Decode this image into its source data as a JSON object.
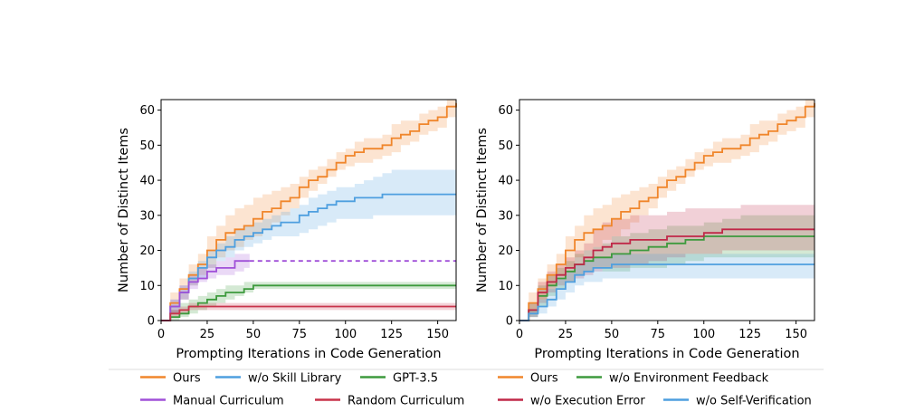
{
  "chart_data": [
    {
      "type": "line",
      "panel": "left",
      "xlabel": "Prompting Iterations in Code Generation",
      "ylabel": "Number of Distinct Items",
      "xlim": [
        0,
        160
      ],
      "ylim": [
        0,
        63
      ],
      "xticks": [
        "0",
        "25",
        "50",
        "75",
        "100",
        "125",
        "150"
      ],
      "yticks": [
        "0",
        "10",
        "20",
        "30",
        "40",
        "50",
        "60"
      ],
      "grid": false,
      "legend_position": "below",
      "series": [
        {
          "name": "Ours",
          "color": "#f0862c",
          "style": "solid",
          "x": [
            0,
            5,
            10,
            15,
            20,
            25,
            30,
            35,
            40,
            45,
            50,
            55,
            60,
            65,
            70,
            75,
            80,
            85,
            90,
            95,
            100,
            105,
            110,
            115,
            120,
            125,
            130,
            135,
            140,
            145,
            150,
            155,
            160
          ],
          "y": [
            0,
            5,
            9,
            13,
            16,
            20,
            23,
            25,
            26,
            27,
            29,
            31,
            32,
            34,
            35,
            38,
            40,
            41,
            43,
            45,
            47,
            48,
            49,
            49,
            50,
            52,
            53,
            54,
            56,
            57,
            58,
            61,
            62
          ],
          "lower": [
            0,
            2,
            6,
            10,
            13,
            15,
            18,
            20,
            21,
            23,
            24,
            26,
            28,
            30,
            32,
            35,
            37,
            39,
            41,
            43,
            44,
            45,
            45,
            46,
            47,
            48,
            50,
            51,
            53,
            54,
            55,
            58,
            60
          ],
          "upper": [
            0,
            8,
            12,
            16,
            19,
            24,
            27,
            30,
            32,
            33,
            35,
            36,
            37,
            38,
            39,
            41,
            43,
            44,
            46,
            48,
            49,
            51,
            52,
            52,
            53,
            56,
            57,
            57,
            59,
            60,
            61,
            63,
            63
          ]
        },
        {
          "name": "w/o Skill Library",
          "color": "#4e9fdf",
          "style": "solid",
          "x": [
            0,
            5,
            10,
            15,
            20,
            25,
            30,
            35,
            40,
            45,
            50,
            55,
            60,
            65,
            70,
            75,
            80,
            85,
            90,
            95,
            100,
            105,
            110,
            115,
            120,
            125,
            130,
            135,
            140,
            145,
            150,
            155,
            160
          ],
          "y": [
            0,
            4,
            8,
            12,
            15,
            18,
            20,
            21,
            23,
            24,
            25,
            26,
            27,
            28,
            28,
            30,
            31,
            32,
            33,
            34,
            34,
            35,
            35,
            35,
            36,
            36,
            36,
            36,
            36,
            36,
            36,
            36,
            36
          ],
          "lower": [
            0,
            2,
            6,
            10,
            12,
            15,
            17,
            18,
            20,
            21,
            22,
            23,
            24,
            24,
            24,
            25,
            26,
            27,
            28,
            29,
            29,
            29,
            29,
            30,
            30,
            30,
            30,
            30,
            30,
            30,
            30,
            30,
            30
          ],
          "upper": [
            0,
            6,
            10,
            14,
            17,
            20,
            22,
            24,
            26,
            27,
            28,
            29,
            30,
            31,
            32,
            33,
            35,
            36,
            37,
            38,
            38,
            39,
            40,
            41,
            42,
            43,
            43,
            43,
            43,
            43,
            43,
            43,
            43
          ]
        },
        {
          "name": "GPT-3.5",
          "color": "#3d9a3d",
          "style": "solid",
          "x": [
            0,
            5,
            10,
            15,
            20,
            25,
            30,
            35,
            40,
            45,
            50,
            55,
            60,
            70,
            80,
            100,
            120,
            140,
            160
          ],
          "y": [
            0,
            1,
            2,
            4,
            5,
            6,
            7,
            8,
            8,
            9,
            10,
            10,
            10,
            10,
            10,
            10,
            10,
            10,
            10
          ],
          "lower": [
            0,
            0,
            1,
            2,
            3,
            4,
            5,
            6,
            7,
            8,
            9,
            9,
            9,
            9,
            9,
            9,
            9,
            9,
            9
          ],
          "upper": [
            0,
            3,
            5,
            6,
            7,
            8,
            9,
            10,
            10,
            11,
            11,
            11,
            11,
            11,
            11,
            11,
            11,
            11,
            11
          ]
        },
        {
          "name": "Manual Curriculum",
          "color": "#a050d8",
          "style": "solid",
          "x": [
            0,
            5,
            10,
            15,
            20,
            25,
            30,
            35,
            40,
            45,
            48
          ],
          "y": [
            0,
            4,
            8,
            11,
            12,
            14,
            15,
            15,
            17,
            17,
            17
          ],
          "lower": [
            0,
            2,
            6,
            9,
            11,
            12,
            13,
            13,
            14,
            15,
            15
          ],
          "upper": [
            0,
            6,
            10,
            13,
            15,
            16,
            17,
            18,
            19,
            19,
            19
          ]
        },
        {
          "name": "Manual Curriculum (extension)",
          "color": "#a050d8",
          "style": "dashed",
          "x": [
            48,
            160
          ],
          "y": [
            17,
            17
          ]
        },
        {
          "name": "Random Curriculum",
          "color": "#c8334a",
          "style": "solid",
          "x": [
            0,
            5,
            10,
            15,
            20,
            25,
            30,
            40,
            60,
            80,
            100,
            120,
            140,
            160
          ],
          "y": [
            0,
            2,
            3,
            4,
            4,
            4,
            4,
            4,
            4,
            4,
            4,
            4,
            4,
            4
          ],
          "lower": [
            0,
            1,
            2,
            3,
            3,
            3,
            3,
            3,
            3,
            3,
            3,
            3,
            3,
            3
          ],
          "upper": [
            0,
            3,
            4,
            5,
            5,
            5,
            5,
            5,
            5,
            5,
            5,
            5,
            5,
            5
          ]
        }
      ]
    },
    {
      "type": "line",
      "panel": "right",
      "xlabel": "Prompting Iterations in Code Generation",
      "ylabel": "Number of Distinct Items",
      "xlim": [
        0,
        160
      ],
      "ylim": [
        0,
        63
      ],
      "xticks": [
        "0",
        "25",
        "50",
        "75",
        "100",
        "125",
        "150"
      ],
      "yticks": [
        "0",
        "10",
        "20",
        "30",
        "40",
        "50",
        "60"
      ],
      "grid": false,
      "legend_position": "below",
      "series": [
        {
          "name": "Ours",
          "color": "#f0862c",
          "style": "solid",
          "x": [
            0,
            5,
            10,
            15,
            20,
            25,
            30,
            35,
            40,
            45,
            50,
            55,
            60,
            65,
            70,
            75,
            80,
            85,
            90,
            95,
            100,
            105,
            110,
            115,
            120,
            125,
            130,
            135,
            140,
            145,
            150,
            155,
            160
          ],
          "y": [
            0,
            5,
            9,
            13,
            16,
            20,
            23,
            25,
            26,
            27,
            29,
            31,
            32,
            34,
            35,
            38,
            40,
            41,
            43,
            45,
            47,
            48,
            49,
            49,
            50,
            52,
            53,
            54,
            56,
            57,
            58,
            61,
            62
          ],
          "lower": [
            0,
            2,
            6,
            10,
            13,
            15,
            18,
            20,
            21,
            23,
            24,
            26,
            28,
            30,
            32,
            35,
            37,
            39,
            41,
            43,
            44,
            45,
            45,
            46,
            47,
            48,
            50,
            51,
            53,
            54,
            55,
            58,
            60
          ],
          "upper": [
            0,
            8,
            12,
            16,
            19,
            24,
            27,
            30,
            32,
            33,
            35,
            36,
            37,
            38,
            39,
            41,
            43,
            44,
            46,
            48,
            49,
            51,
            52,
            52,
            53,
            56,
            57,
            57,
            59,
            60,
            61,
            63,
            63
          ]
        },
        {
          "name": "w/o Environment Feedback",
          "color": "#3d9a3d",
          "style": "solid",
          "x": [
            0,
            5,
            10,
            15,
            20,
            25,
            30,
            35,
            40,
            45,
            50,
            60,
            70,
            80,
            90,
            100,
            110,
            120,
            130,
            140,
            150,
            160
          ],
          "y": [
            0,
            3,
            7,
            10,
            12,
            14,
            16,
            17,
            18,
            18,
            19,
            20,
            21,
            22,
            23,
            24,
            24,
            24,
            24,
            24,
            24,
            24
          ],
          "lower": [
            0,
            1,
            4,
            7,
            9,
            11,
            13,
            14,
            15,
            14,
            14,
            15,
            15,
            16,
            17,
            18,
            18,
            18,
            18,
            18,
            18,
            18
          ],
          "upper": [
            0,
            5,
            10,
            13,
            15,
            17,
            19,
            20,
            21,
            22,
            24,
            25,
            26,
            27,
            27,
            28,
            29,
            30,
            30,
            30,
            30,
            30
          ]
        },
        {
          "name": "w/o Execution Error",
          "color": "#c02848",
          "style": "solid",
          "x": [
            0,
            5,
            10,
            15,
            20,
            25,
            30,
            35,
            40,
            45,
            50,
            60,
            70,
            80,
            90,
            100,
            110,
            120,
            130,
            140,
            150,
            160
          ],
          "y": [
            0,
            3,
            8,
            11,
            13,
            15,
            16,
            18,
            20,
            21,
            22,
            23,
            23,
            24,
            24,
            25,
            26,
            26,
            26,
            26,
            26,
            26
          ],
          "lower": [
            0,
            1,
            5,
            8,
            10,
            11,
            12,
            13,
            14,
            15,
            15,
            16,
            17,
            18,
            19,
            19,
            20,
            20,
            20,
            20,
            20,
            20
          ],
          "upper": [
            0,
            5,
            11,
            14,
            16,
            18,
            20,
            22,
            26,
            28,
            29,
            30,
            30,
            31,
            32,
            32,
            32,
            33,
            33,
            33,
            33,
            33
          ]
        },
        {
          "name": "w/o Self-Verification",
          "color": "#4e9fdf",
          "style": "solid",
          "x": [
            0,
            5,
            10,
            15,
            20,
            25,
            30,
            35,
            40,
            45,
            50,
            60,
            70,
            80,
            90,
            100,
            110,
            120,
            130,
            140,
            150,
            160
          ],
          "y": [
            0,
            2,
            4,
            6,
            9,
            11,
            13,
            14,
            15,
            15,
            16,
            16,
            16,
            16,
            16,
            16,
            16,
            16,
            16,
            16,
            16,
            16
          ],
          "lower": [
            0,
            1,
            2,
            4,
            6,
            8,
            10,
            11,
            11,
            12,
            12,
            12,
            12,
            12,
            12,
            12,
            12,
            12,
            12,
            12,
            12,
            12
          ],
          "upper": [
            0,
            3,
            6,
            9,
            12,
            14,
            16,
            17,
            18,
            18,
            19,
            19,
            19,
            19,
            19,
            19,
            19,
            19,
            19,
            19,
            19,
            19
          ]
        }
      ]
    }
  ],
  "legends": [
    {
      "entries": [
        {
          "label": "Ours",
          "color": "#f0862c"
        },
        {
          "label": "w/o Skill Library",
          "color": "#4e9fdf"
        },
        {
          "label": "GPT-3.5",
          "color": "#3d9a3d"
        },
        {
          "label": "Manual Curriculum",
          "color": "#a050d8"
        },
        {
          "label": "Random Curriculum",
          "color": "#c8334a"
        }
      ]
    },
    {
      "entries": [
        {
          "label": "Ours",
          "color": "#f0862c"
        },
        {
          "label": "w/o Environment Feedback",
          "color": "#3d9a3d"
        },
        {
          "label": "w/o Execution Error",
          "color": "#c02848"
        },
        {
          "label": "w/o Self-Verification",
          "color": "#4e9fdf"
        }
      ]
    }
  ]
}
